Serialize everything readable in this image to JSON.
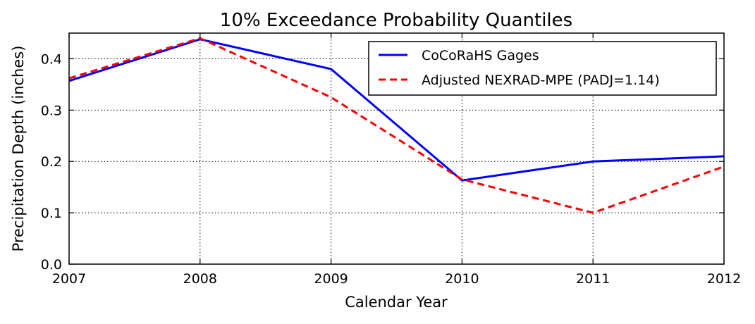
{
  "chart_data": {
    "type": "line",
    "title": "10% Exceedance Probability Quantiles",
    "xlabel": "Calendar Year",
    "ylabel": "Precipitation Depth (inches)",
    "x": [
      2007,
      2008,
      2009,
      2010,
      2011,
      2012
    ],
    "xlim": [
      2007,
      2012
    ],
    "ylim": [
      0.0,
      0.45
    ],
    "xticks": [
      "2007",
      "2008",
      "2009",
      "2010",
      "2011",
      "2012"
    ],
    "yticks": [
      0.0,
      0.1,
      0.2,
      0.3,
      0.4
    ],
    "ytick_labels": [
      "0.0",
      "0.1",
      "0.2",
      "0.3",
      "0.4"
    ],
    "grid": true,
    "legend_position": "upper right",
    "series": [
      {
        "name": "CoCoRaHS Gages",
        "color": "#0000ff",
        "linestyle": "solid",
        "values": [
          0.357,
          0.438,
          0.38,
          0.163,
          0.2,
          0.21
        ]
      },
      {
        "name": "Adjusted NEXRAD-MPE (PADJ=1.14)",
        "color": "#ff0000",
        "linestyle": "dashed",
        "values": [
          0.362,
          0.44,
          0.325,
          0.165,
          0.1,
          0.19
        ]
      }
    ]
  }
}
